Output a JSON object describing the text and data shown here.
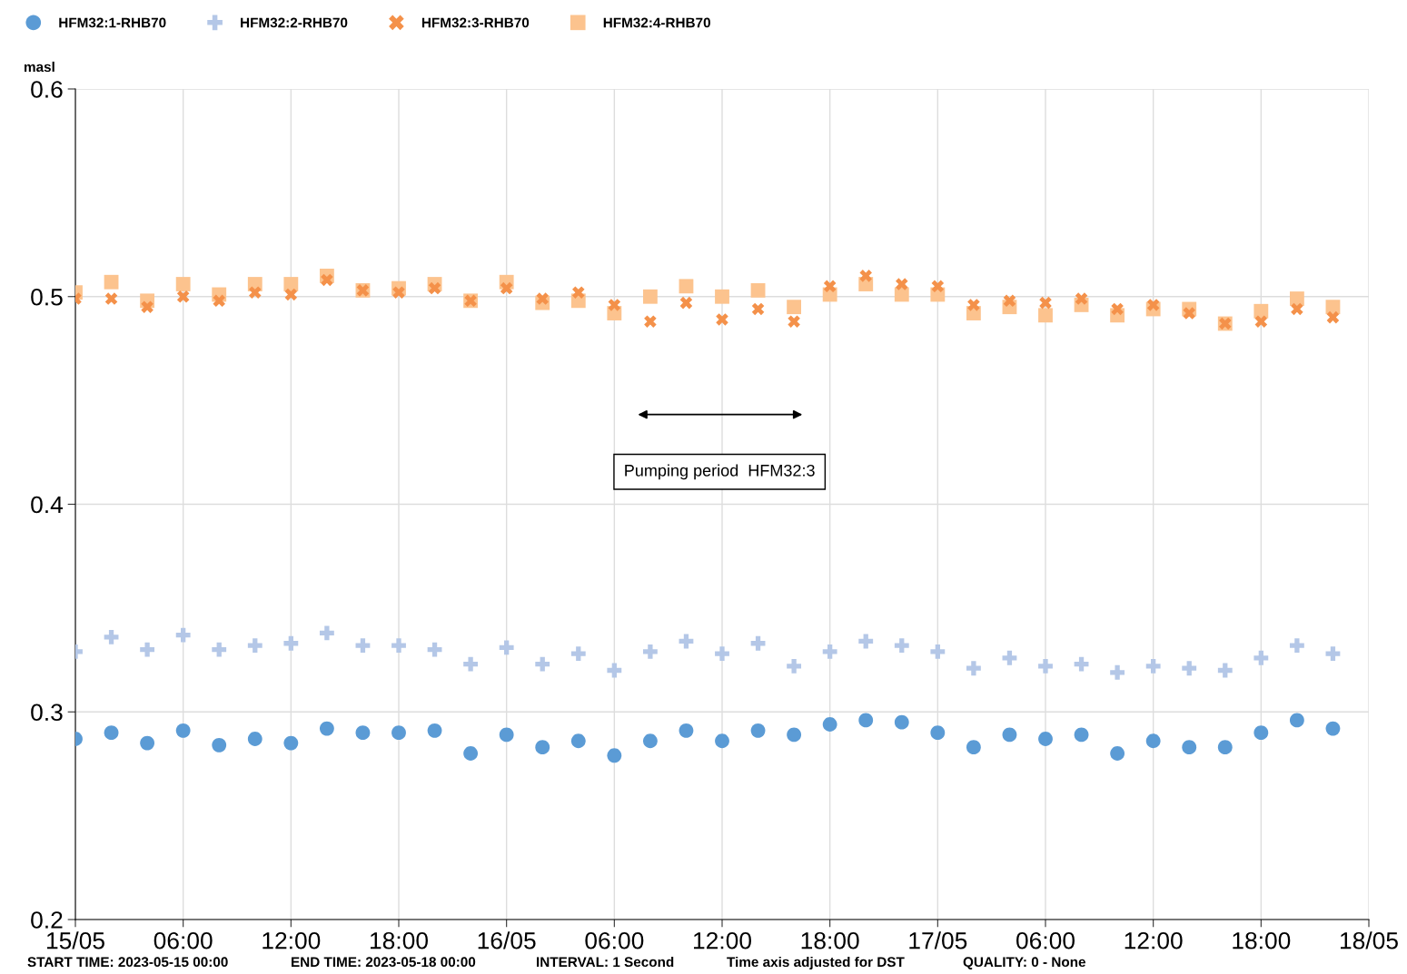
{
  "chart_data": {
    "type": "scatter",
    "ylabel": "masl",
    "x": [
      "2023-05-15T00:00",
      "2023-05-15T02:00",
      "2023-05-15T04:00",
      "2023-05-15T06:00",
      "2023-05-15T08:00",
      "2023-05-15T10:00",
      "2023-05-15T12:00",
      "2023-05-15T14:00",
      "2023-05-15T16:00",
      "2023-05-15T18:00",
      "2023-05-15T20:00",
      "2023-05-15T22:00",
      "2023-05-16T00:00",
      "2023-05-16T02:00",
      "2023-05-16T04:00",
      "2023-05-16T06:00",
      "2023-05-16T08:00",
      "2023-05-16T10:00",
      "2023-05-16T12:00",
      "2023-05-16T14:00",
      "2023-05-16T16:00",
      "2023-05-16T18:00",
      "2023-05-16T20:00",
      "2023-05-16T22:00",
      "2023-05-17T00:00",
      "2023-05-17T02:00",
      "2023-05-17T04:00",
      "2023-05-17T06:00",
      "2023-05-17T08:00",
      "2023-05-17T10:00",
      "2023-05-17T12:00",
      "2023-05-17T14:00",
      "2023-05-17T16:00",
      "2023-05-17T18:00",
      "2023-05-17T20:00",
      "2023-05-17T22:00"
    ],
    "series": [
      {
        "name": "HFM32:1-RHB70",
        "color": "#5b9bd5",
        "marker": "circle",
        "values": [
          0.287,
          0.29,
          0.285,
          0.291,
          0.284,
          0.287,
          0.285,
          0.292,
          0.29,
          0.29,
          0.291,
          0.28,
          0.289,
          0.283,
          0.286,
          0.279,
          0.286,
          0.291,
          0.286,
          0.291,
          0.289,
          0.294,
          0.296,
          0.295,
          0.29,
          0.283,
          0.289,
          0.287,
          0.289,
          0.28,
          0.286,
          0.283,
          0.283,
          0.29,
          0.296,
          0.292
        ]
      },
      {
        "name": "HFM32:2-RHB70",
        "color": "#b4c7e7",
        "marker": "plus",
        "values": [
          0.329,
          0.336,
          0.33,
          0.337,
          0.33,
          0.332,
          0.333,
          0.338,
          0.332,
          0.332,
          0.33,
          0.323,
          0.331,
          0.323,
          0.328,
          0.32,
          0.329,
          0.334,
          0.328,
          0.333,
          0.322,
          0.329,
          0.334,
          0.332,
          0.329,
          0.321,
          0.326,
          0.322,
          0.323,
          0.319,
          0.322,
          0.321,
          0.32,
          0.326,
          0.332,
          0.328
        ]
      },
      {
        "name": "HFM32:3-RHB70",
        "color": "#f4914a",
        "marker": "cross",
        "values": [
          0.499,
          0.499,
          0.495,
          0.5,
          0.498,
          0.502,
          0.501,
          0.508,
          0.503,
          0.502,
          0.504,
          0.498,
          0.504,
          0.499,
          0.502,
          0.496,
          0.488,
          0.497,
          0.489,
          0.494,
          0.488,
          0.505,
          0.51,
          0.506,
          0.505,
          0.496,
          0.498,
          0.497,
          0.499,
          0.494,
          0.496,
          0.492,
          0.487,
          0.488,
          0.494,
          0.49
        ]
      },
      {
        "name": "HFM32:4-RHB70",
        "color": "#fcc38e",
        "marker": "square",
        "values": [
          0.502,
          0.507,
          0.498,
          0.506,
          0.501,
          0.506,
          0.506,
          0.51,
          0.503,
          0.504,
          0.506,
          0.498,
          0.507,
          0.497,
          0.498,
          0.492,
          0.5,
          0.505,
          0.5,
          0.503,
          0.495,
          0.501,
          0.506,
          0.501,
          0.501,
          0.492,
          0.495,
          0.491,
          0.496,
          0.491,
          0.494,
          0.494,
          0.487,
          0.493,
          0.499,
          0.495
        ]
      }
    ],
    "xlim": [
      "2023-05-15T00:00",
      "2023-05-18T00:00"
    ],
    "xticks": [
      {
        "value": "2023-05-15T00:00",
        "label": "15/05"
      },
      {
        "value": "2023-05-15T06:00",
        "label": "06:00"
      },
      {
        "value": "2023-05-15T12:00",
        "label": "12:00"
      },
      {
        "value": "2023-05-15T18:00",
        "label": "18:00"
      },
      {
        "value": "2023-05-16T00:00",
        "label": "16/05"
      },
      {
        "value": "2023-05-16T06:00",
        "label": "06:00"
      },
      {
        "value": "2023-05-16T12:00",
        "label": "12:00"
      },
      {
        "value": "2023-05-16T18:00",
        "label": "18:00"
      },
      {
        "value": "2023-05-17T00:00",
        "label": "17/05"
      },
      {
        "value": "2023-05-17T06:00",
        "label": "06:00"
      },
      {
        "value": "2023-05-17T12:00",
        "label": "12:00"
      },
      {
        "value": "2023-05-17T18:00",
        "label": "18:00"
      },
      {
        "value": "2023-05-18T00:00",
        "label": "18/05"
      }
    ],
    "ylim": [
      0.2,
      0.6
    ],
    "yticks": [
      0.2,
      0.3,
      0.4,
      0.5,
      0.6
    ],
    "grid": true,
    "legend": "top left",
    "annotations": [
      "Pumping period  HFM32:3",
      "START TIME: 2023-05-15 00:00",
      "END TIME: 2023-05-18 00:00",
      "INTERVAL: 1 Second",
      "Time axis adjusted for DST",
      "QUALITY: 0 - None"
    ]
  }
}
